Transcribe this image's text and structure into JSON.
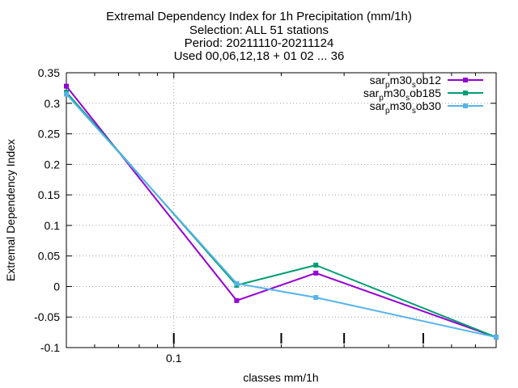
{
  "chart_data": {
    "type": "line",
    "title_lines": [
      "Extremal Dependency Index  for 1h Precipitation (mm/1h)",
      "Selection: ALL      51 stations",
      "Period: 20211110-20211124",
      "Used 00,06,12,18 + 01 02 ... 36"
    ],
    "xlabel": "classes mm/1h",
    "ylabel": "Extremal Dependency Index",
    "x_scale": "log",
    "x_ticks": [
      "0.1"
    ],
    "y_ticks": [
      "0.35",
      "0.3",
      "0.25",
      "0.2",
      "0.15",
      "0.1",
      "0.05",
      "0",
      "-0.05",
      "-0.1"
    ],
    "ylim": [
      -0.1,
      0.35
    ],
    "grid": true,
    "legend_position": "top-right",
    "series": [
      {
        "name": "sar_p m30_s ob12",
        "name_parts": [
          "sar",
          "p",
          "m30",
          "s",
          "ob12"
        ],
        "color": "#9400d3",
        "marker": "filled-square",
        "points": [
          [
            0.05,
            0.328
          ],
          [
            0.15,
            -0.023
          ],
          [
            0.25,
            0.022
          ],
          [
            0.8,
            -0.083
          ]
        ]
      },
      {
        "name": "sar_p m30_s ob185",
        "name_parts": [
          "sar",
          "p",
          "m30",
          "s",
          "ob185"
        ],
        "color": "#009e73",
        "marker": "filled-square",
        "points": [
          [
            0.05,
            0.318
          ],
          [
            0.15,
            0.002
          ],
          [
            0.25,
            0.035
          ],
          [
            0.8,
            -0.083
          ]
        ]
      },
      {
        "name": "sar_p m30_s ob30",
        "name_parts": [
          "sar",
          "p",
          "m30",
          "s",
          "ob30"
        ],
        "color": "#56b4e9",
        "marker": "filled-square",
        "points": [
          [
            0.05,
            0.315
          ],
          [
            0.15,
            0.005
          ],
          [
            0.25,
            -0.018
          ],
          [
            0.8,
            -0.083
          ]
        ]
      }
    ],
    "threshold_markers_x": [
      0.1,
      0.2,
      0.3,
      0.5
    ],
    "plot_range_x": [
      0.05,
      0.8
    ]
  }
}
